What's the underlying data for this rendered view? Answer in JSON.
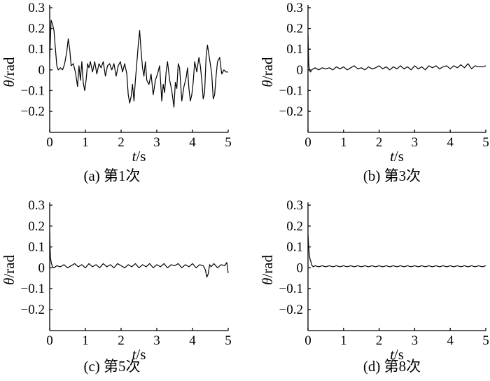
{
  "chart_data": [
    {
      "type": "line",
      "caption": "(a) 第1次",
      "xlabel": "t/s",
      "ylabel": "θ/rad",
      "xlim": [
        0,
        5
      ],
      "ylim": [
        -0.2,
        0.3
      ],
      "xticks": [
        "0",
        "1",
        "2",
        "3",
        "4",
        "5"
      ],
      "yticks": [
        "0.3",
        "0.2",
        "0.1",
        "0",
        "-0.1",
        "-0.2"
      ],
      "grid": false,
      "series": [
        {
          "x": [
            0,
            0.04,
            0.08,
            0.12,
            0.16,
            0.2,
            0.24,
            0.3,
            0.36,
            0.42,
            0.48,
            0.52,
            0.56,
            0.6,
            0.66,
            0.72,
            0.78,
            0.82,
            0.86,
            0.9,
            0.94,
            0.98,
            1.02,
            1.06,
            1.1,
            1.14,
            1.2,
            1.26,
            1.32,
            1.38,
            1.44,
            1.5,
            1.56,
            1.62,
            1.68,
            1.74,
            1.8,
            1.86,
            1.92,
            1.98,
            2.04,
            2.1,
            2.16,
            2.2,
            2.24,
            2.28,
            2.32,
            2.36,
            2.4,
            2.44,
            2.48,
            2.52,
            2.56,
            2.6,
            2.64,
            2.68,
            2.72,
            2.78,
            2.84,
            2.9,
            2.96,
            3.02,
            3.08,
            3.14,
            3.18,
            3.22,
            3.26,
            3.3,
            3.36,
            3.42,
            3.48,
            3.52,
            3.56,
            3.6,
            3.64,
            3.7,
            3.76,
            3.82,
            3.86,
            3.9,
            3.94,
            3.98,
            4.02,
            4.06,
            4.12,
            4.18,
            4.22,
            4.26,
            4.3,
            4.34,
            4.38,
            4.42,
            4.48,
            4.54,
            4.58,
            4.62,
            4.66,
            4.7,
            4.76,
            4.82,
            4.88,
            4.94,
            5.0
          ],
          "y": [
            0.05,
            0.24,
            0.22,
            0.19,
            0.1,
            0.02,
            0.0,
            0.01,
            0.0,
            0.03,
            0.09,
            0.15,
            0.1,
            0.02,
            0.03,
            -0.01,
            -0.08,
            0.02,
            -0.05,
            0.04,
            -0.06,
            -0.1,
            -0.05,
            0.03,
            0.01,
            0.04,
            -0.01,
            0.04,
            -0.02,
            0.03,
            0.01,
            0.04,
            -0.03,
            0.02,
            0.03,
            0.0,
            0.03,
            -0.03,
            0.02,
            0.04,
            -0.01,
            0.03,
            -0.02,
            -0.12,
            -0.16,
            -0.13,
            -0.07,
            -0.15,
            -0.05,
            0.03,
            0.12,
            0.19,
            0.09,
            0.01,
            -0.03,
            0.04,
            -0.05,
            -0.07,
            -0.02,
            -0.12,
            -0.05,
            -0.02,
            0.02,
            -0.15,
            -0.07,
            -0.11,
            -0.01,
            0.04,
            -0.05,
            -0.1,
            -0.18,
            -0.06,
            -0.09,
            0.03,
            0.01,
            -0.15,
            -0.08,
            -0.04,
            0.01,
            -0.09,
            -0.15,
            -0.12,
            -0.06,
            0.04,
            -0.01,
            0.06,
            0.02,
            -0.05,
            -0.14,
            -0.11,
            0.06,
            0.12,
            0.05,
            -0.02,
            -0.14,
            -0.12,
            -0.03,
            0.04,
            0.06,
            -0.02,
            0.0,
            -0.01,
            -0.01
          ]
        }
      ]
    },
    {
      "type": "line",
      "caption": "(b) 第3次",
      "xlabel": "t/s",
      "ylabel": "θ/rad",
      "xlim": [
        0,
        5
      ],
      "ylim": [
        -0.2,
        0.3
      ],
      "xticks": [
        "0",
        "1",
        "2",
        "3",
        "4",
        "5"
      ],
      "yticks": [
        "0.3",
        "0.2",
        "0.1",
        "0",
        "-0.1",
        "-0.2"
      ],
      "grid": false,
      "series": [
        {
          "x": [
            0,
            0.02,
            0.04,
            0.07,
            0.1,
            0.2,
            0.3,
            0.4,
            0.5,
            0.6,
            0.7,
            0.8,
            0.9,
            1.0,
            1.1,
            1.2,
            1.3,
            1.4,
            1.5,
            1.6,
            1.7,
            1.8,
            1.9,
            2.0,
            2.1,
            2.2,
            2.3,
            2.4,
            2.5,
            2.6,
            2.7,
            2.8,
            2.9,
            3.0,
            3.1,
            3.2,
            3.3,
            3.4,
            3.5,
            3.6,
            3.7,
            3.8,
            3.9,
            4.0,
            4.1,
            4.2,
            4.3,
            4.4,
            4.5,
            4.6,
            4.7,
            4.8,
            4.9,
            5.0
          ],
          "y": [
            0.17,
            0.03,
            0.0,
            -0.01,
            0.0,
            0.01,
            0.0,
            0.01,
            0.005,
            0.01,
            0.0,
            0.015,
            0.005,
            0.015,
            0.0,
            0.01,
            0.02,
            0.005,
            0.01,
            0.0,
            0.015,
            0.005,
            0.01,
            0.02,
            0.005,
            0.015,
            0.0,
            0.015,
            0.005,
            0.02,
            0.005,
            0.015,
            0.0,
            0.02,
            0.005,
            0.015,
            0.0,
            0.02,
            0.01,
            0.02,
            0.005,
            0.015,
            0.02,
            0.005,
            0.02,
            0.01,
            0.025,
            0.01,
            0.03,
            0.005,
            0.02,
            0.015,
            0.015,
            0.02
          ]
        }
      ]
    },
    {
      "type": "line",
      "caption": "(c) 第5次",
      "xlabel": "t/s",
      "ylabel": "θ/rad",
      "xlim": [
        0,
        5
      ],
      "ylim": [
        -0.2,
        0.3
      ],
      "xticks": [
        "0",
        "1",
        "2",
        "3",
        "4",
        "5"
      ],
      "yticks": [
        "0.3",
        "0.2",
        "0.1",
        "0",
        "-0.1",
        "-0.2"
      ],
      "grid": false,
      "series": [
        {
          "x": [
            0,
            0.02,
            0.05,
            0.08,
            0.12,
            0.2,
            0.3,
            0.4,
            0.5,
            0.6,
            0.7,
            0.8,
            0.9,
            1.0,
            1.1,
            1.2,
            1.3,
            1.4,
            1.5,
            1.6,
            1.7,
            1.8,
            1.9,
            2.0,
            2.1,
            2.2,
            2.3,
            2.4,
            2.5,
            2.6,
            2.7,
            2.8,
            2.9,
            3.0,
            3.1,
            3.2,
            3.3,
            3.4,
            3.5,
            3.6,
            3.7,
            3.8,
            3.9,
            4.0,
            4.1,
            4.2,
            4.3,
            4.36,
            4.4,
            4.44,
            4.48,
            4.52,
            4.6,
            4.7,
            4.8,
            4.9,
            4.96,
            5.0
          ],
          "y": [
            0.17,
            0.05,
            0.02,
            0.005,
            0.0,
            0.01,
            0.005,
            0.015,
            0.0,
            0.01,
            0.02,
            0.005,
            0.015,
            0.0,
            0.02,
            0.005,
            0.015,
            0.0,
            0.02,
            0.005,
            0.015,
            0.0,
            0.02,
            0.01,
            0.0,
            0.015,
            0.005,
            0.02,
            0.0,
            0.015,
            0.005,
            0.02,
            0.0,
            0.015,
            0.005,
            0.02,
            0.0,
            0.015,
            0.01,
            0.02,
            0.0,
            0.015,
            0.005,
            0.02,
            0.0,
            0.015,
            0.01,
            -0.01,
            -0.045,
            -0.03,
            0.015,
            0.005,
            0.02,
            0.0,
            0.015,
            0.01,
            0.025,
            -0.025
          ]
        }
      ]
    },
    {
      "type": "line",
      "caption": "(d) 第8次",
      "xlabel": "t/s",
      "ylabel": "θ/rad",
      "xlim": [
        0,
        5
      ],
      "ylim": [
        -0.2,
        0.3
      ],
      "xticks": [
        "0",
        "1",
        "2",
        "3",
        "4",
        "5"
      ],
      "yticks": [
        "0.3",
        "0.2",
        "0.1",
        "0",
        "-0.1",
        "-0.2"
      ],
      "grid": false,
      "series": [
        {
          "x": [
            0,
            0.02,
            0.04,
            0.06,
            0.08,
            0.1,
            0.12,
            0.15,
            0.2,
            0.3,
            0.4,
            0.5,
            0.6,
            0.7,
            0.8,
            0.9,
            1.0,
            1.1,
            1.2,
            1.3,
            1.4,
            1.5,
            1.6,
            1.7,
            1.8,
            1.9,
            2.0,
            2.1,
            2.2,
            2.3,
            2.4,
            2.5,
            2.6,
            2.7,
            2.8,
            2.9,
            3.0,
            3.1,
            3.2,
            3.3,
            3.4,
            3.5,
            3.6,
            3.7,
            3.8,
            3.9,
            4.0,
            4.1,
            4.2,
            4.3,
            4.4,
            4.5,
            4.6,
            4.7,
            4.8,
            4.9,
            5.0
          ],
          "y": [
            0.16,
            0.1,
            0.06,
            0.04,
            0.03,
            0.015,
            0.01,
            0.005,
            0.01,
            0.005,
            0.01,
            0.005,
            0.01,
            0.005,
            0.01,
            0.005,
            0.01,
            0.005,
            0.01,
            0.005,
            0.01,
            0.005,
            0.01,
            0.005,
            0.01,
            0.005,
            0.01,
            0.005,
            0.01,
            0.005,
            0.01,
            0.005,
            0.01,
            0.005,
            0.01,
            0.005,
            0.01,
            0.005,
            0.01,
            0.005,
            0.01,
            0.005,
            0.01,
            0.005,
            0.01,
            0.005,
            0.01,
            0.005,
            0.01,
            0.005,
            0.01,
            0.005,
            0.01,
            0.005,
            0.01,
            0.005,
            0.01
          ]
        }
      ]
    }
  ]
}
